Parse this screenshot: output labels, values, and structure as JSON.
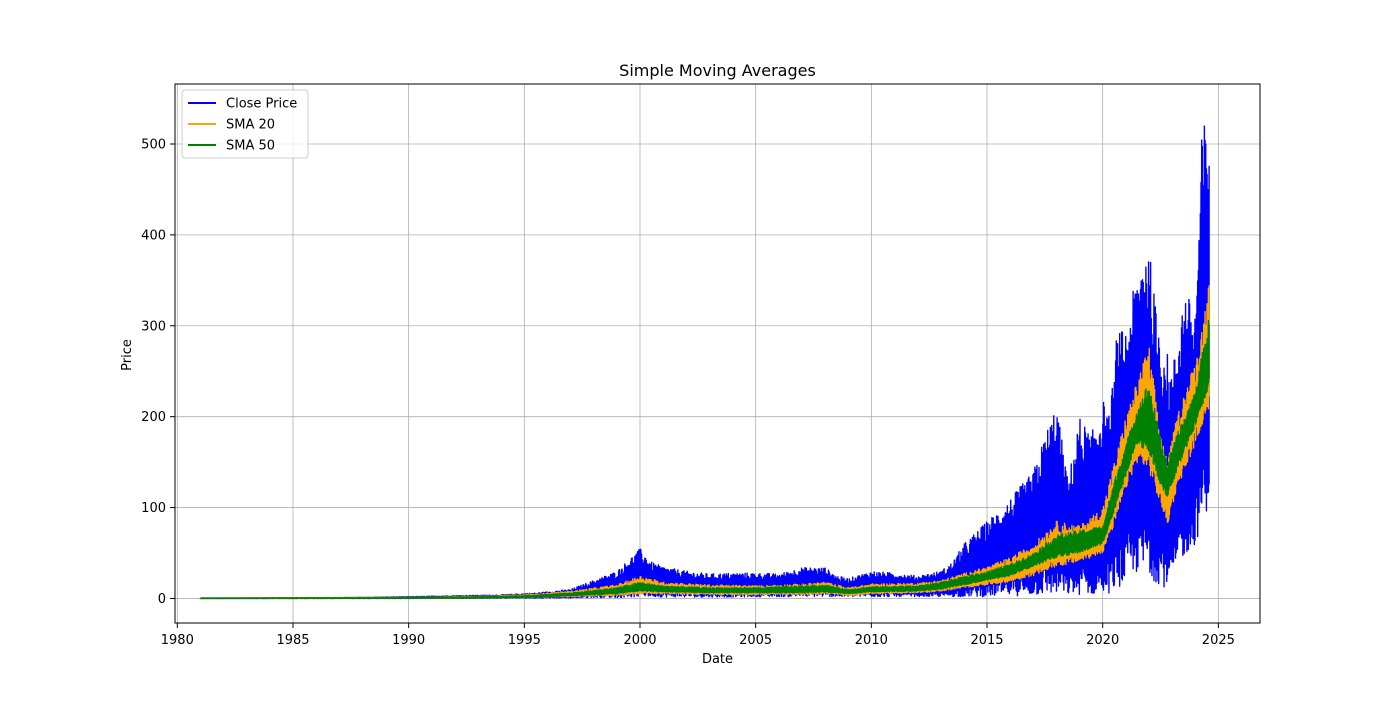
{
  "chart_data": {
    "type": "line",
    "title": "Simple Moving Averages",
    "xlabel": "Date",
    "ylabel": "Price",
    "xlim": [
      1979.9,
      2026.8
    ],
    "ylim": [
      -27,
      566
    ],
    "xticks": [
      1980,
      1985,
      1990,
      1995,
      2000,
      2005,
      2010,
      2015,
      2020,
      2025
    ],
    "yticks": [
      0,
      100,
      200,
      300,
      400,
      500
    ],
    "grid": true,
    "legend_position": "top-left",
    "x_range": [
      1981.0,
      2024.6
    ],
    "series": [
      {
        "name": "Close Price",
        "color": "#0000ff",
        "style": "band",
        "x": [
          1981,
          1985,
          1988,
          1990,
          1992,
          1994,
          1995.5,
          1997,
          1998,
          1999,
          2000,
          2000.5,
          2001,
          2002,
          2003,
          2004,
          2005,
          2006,
          2007,
          2008,
          2008.5,
          2009,
          2010,
          2011,
          2012,
          2013,
          2013.5,
          2014,
          2015,
          2016,
          2017,
          2017.5,
          2018,
          2018.5,
          2019,
          2019.5,
          2020,
          2020.3,
          2020.6,
          2021,
          2021.5,
          2021.9,
          2022.3,
          2022.7,
          2023,
          2023.5,
          2024,
          2024.3,
          2024.6
        ],
        "upper": [
          0.5,
          0.8,
          1.2,
          2,
          3,
          4,
          6,
          10,
          20,
          30,
          55,
          40,
          35,
          30,
          27,
          28,
          28,
          27,
          34,
          34,
          25,
          22,
          30,
          28,
          25,
          30,
          40,
          60,
          85,
          110,
          140,
          180,
          215,
          130,
          200,
          180,
          220,
          200,
          290,
          300,
          360,
          410,
          320,
          280,
          250,
          340,
          320,
          520,
          540
        ],
        "lower": [
          0,
          0,
          0,
          0,
          0.1,
          0.2,
          0.3,
          0.5,
          1,
          1,
          2,
          2,
          1.5,
          1.5,
          1.5,
          1.5,
          2,
          2,
          2,
          2,
          2,
          2,
          2,
          2,
          2,
          2,
          2,
          2,
          2,
          3,
          3,
          4,
          4,
          4,
          4,
          4,
          5,
          6,
          10,
          18,
          28,
          25,
          18,
          12,
          20,
          45,
          60,
          80,
          105
        ]
      },
      {
        "name": "SMA 20",
        "color": "#ffa500",
        "style": "band",
        "x": [
          1981,
          1985,
          1990,
          1993,
          1995,
          1997,
          1999,
          2000,
          2001,
          2003,
          2005,
          2007,
          2008,
          2009,
          2010,
          2012,
          2013,
          2015,
          2016,
          2017,
          2018,
          2019,
          2020,
          2020.5,
          2021,
          2021.5,
          2022,
          2022.4,
          2022.8,
          2023.2,
          2023.7,
          2024,
          2024.3,
          2024.6
        ],
        "upper": [
          0.5,
          0.8,
          1.2,
          2.5,
          4,
          8,
          15,
          25,
          18,
          15,
          14,
          16,
          18,
          12,
          16,
          17,
          20,
          35,
          45,
          60,
          85,
          80,
          100,
          150,
          200,
          240,
          280,
          200,
          150,
          200,
          240,
          260,
          300,
          350
        ],
        "lower": [
          0,
          0,
          0,
          0.5,
          1,
          2,
          3,
          5,
          5,
          4,
          4,
          4,
          5,
          3,
          5,
          6,
          8,
          15,
          18,
          25,
          35,
          40,
          50,
          80,
          120,
          150,
          140,
          110,
          80,
          120,
          150,
          170,
          190,
          210
        ]
      },
      {
        "name": "SMA 50",
        "color": "#008000",
        "style": "band",
        "x": [
          1981,
          1985,
          1990,
          1993,
          1995,
          1997,
          1999,
          2000,
          2001,
          2003,
          2005,
          2007,
          2008,
          2009,
          2010,
          2012,
          2013,
          2015,
          2016,
          2017,
          2018,
          2019,
          2020,
          2020.5,
          2021,
          2021.5,
          2022,
          2022.4,
          2022.8,
          2023.2,
          2023.7,
          2024,
          2024.3,
          2024.6
        ],
        "upper": [
          0.3,
          0.6,
          1,
          2,
          3,
          6,
          12,
          18,
          14,
          12,
          12,
          14,
          15,
          10,
          13,
          14,
          18,
          30,
          38,
          50,
          70,
          75,
          80,
          130,
          170,
          210,
          240,
          190,
          150,
          180,
          210,
          230,
          270,
          310
        ],
        "lower": [
          0,
          0,
          0,
          0.5,
          1,
          3,
          5,
          8,
          7,
          6,
          6,
          6,
          7,
          5,
          7,
          8,
          10,
          20,
          25,
          35,
          45,
          50,
          60,
          95,
          135,
          170,
          160,
          130,
          110,
          140,
          170,
          190,
          210,
          230
        ]
      }
    ]
  }
}
